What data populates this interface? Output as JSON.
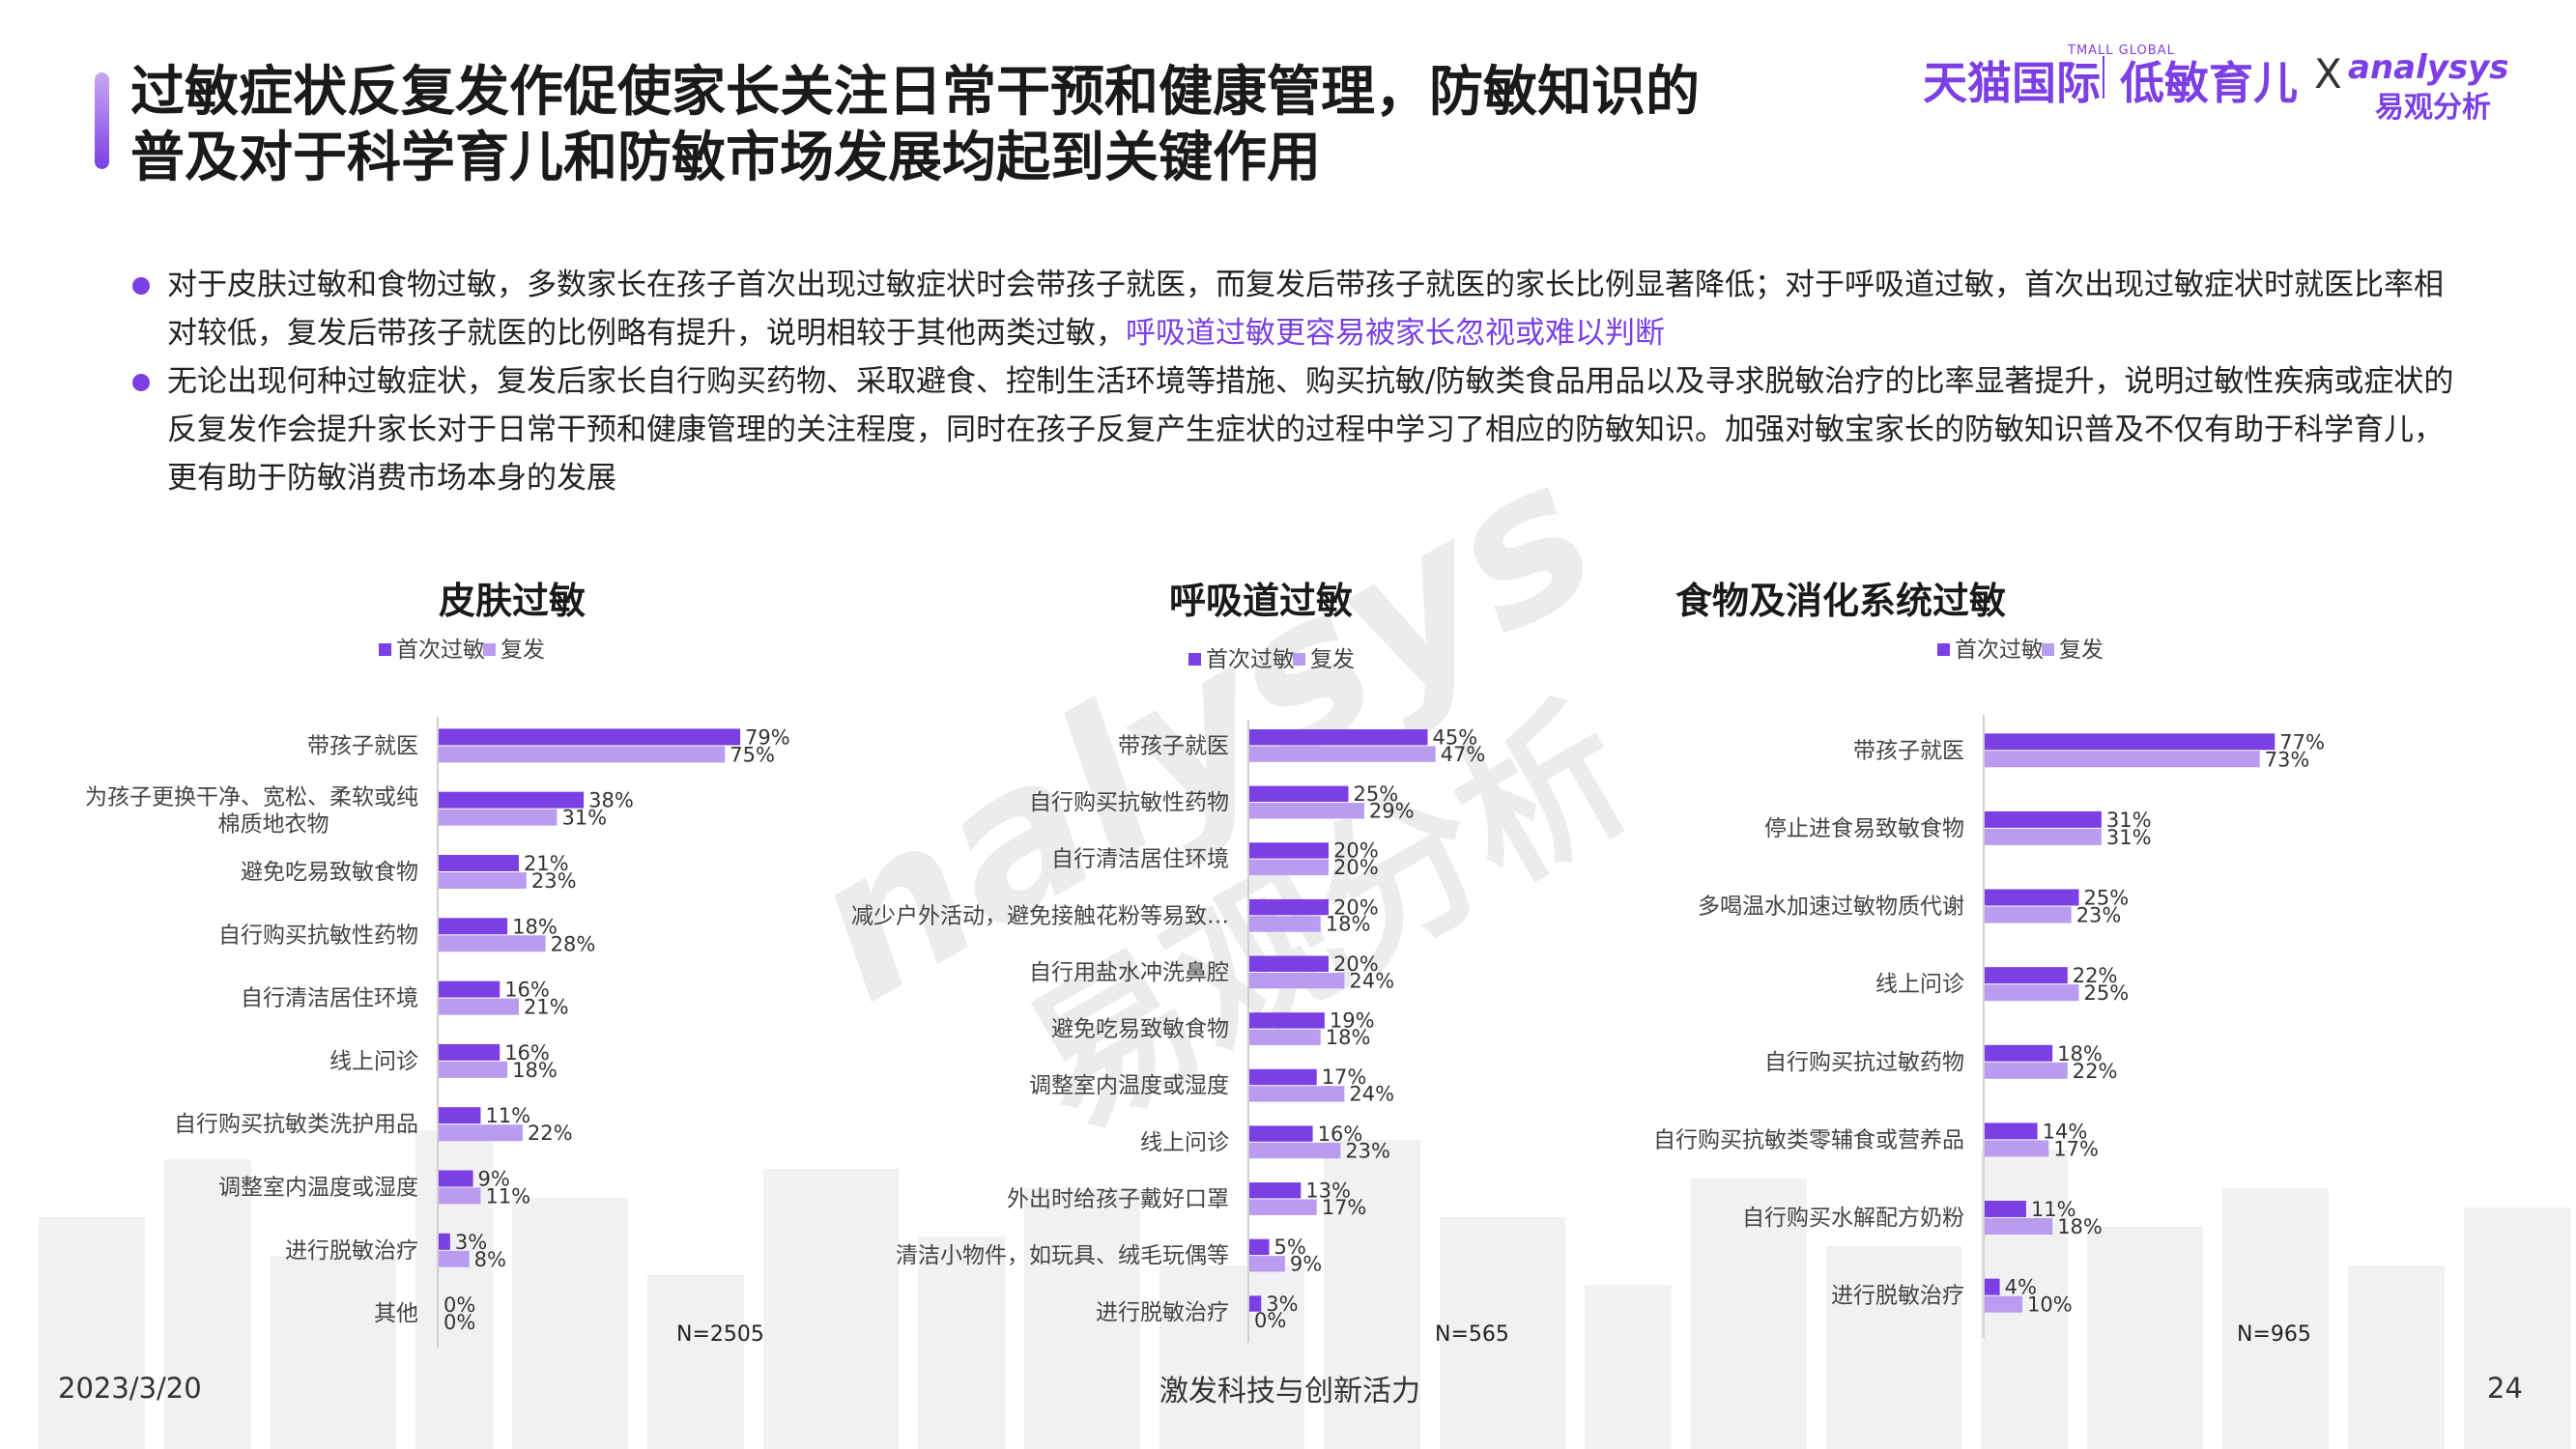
{
  "header": {
    "title_line1": "过敏症状反复发作促使家长关注日常干预和健康管理，防敏知识的",
    "title_line2": "普及对于科学育儿和防敏市场发展均起到关键作用"
  },
  "logo": {
    "tmall": "天猫国际",
    "tmall_sub": "TMALL GLOBAL",
    "product": "低敏育儿",
    "x": "X",
    "analysys": "analysys",
    "analysys_cn": "易观分析"
  },
  "bullets": {
    "b1_part1": "对于皮肤过敏和食物过敏，多数家长在孩子首次出现过敏症状时会带孩子就医，而复发后带孩子就医的家长比例显著降低；对于呼吸道过敏，首次出现过敏症状时就医比率相对较低，复发后带孩子就医的比例略有提升，说明相较于其他两类过敏，",
    "b1_highlight": "呼吸道过敏更容易被家长忽视或难以判断",
    "b2": "无论出现何种过敏症状，复发后家长自行购买药物、采取避食、控制生活环境等措施、购买抗敏/防敏类食品用品以及寻求脱敏治疗的比率显著提升，说明过敏性疾病或症状的反复发作会提升家长对于日常干预和健康管理的关注程度，同时在孩子反复产生症状的过程中学习了相应的防敏知识。加强对敏宝家长的防敏知识普及不仅有助于科学育儿，更有助于防敏消费市场本身的发展"
  },
  "colors": {
    "first": "#7b3fe4",
    "repeat": "#b99cf0",
    "accent": "#7b3fe4"
  },
  "chart_data": [
    {
      "type": "bar",
      "title": "皮肤过敏",
      "n_label": "N=2505",
      "categories": [
        "带孩子就医",
        "为孩子更换干净、宽松、柔软或纯棉质地衣物",
        "避免吃易致敏食物",
        "自行购买抗敏性药物",
        "自行清洁居住环境",
        "线上问诊",
        "自行购买抗敏类洗护用品",
        "调整室内温度或湿度",
        "进行脱敏治疗",
        "其他"
      ],
      "series": [
        {
          "name": "首次过敏",
          "values": [
            79,
            38,
            21,
            18,
            16,
            16,
            11,
            9,
            3,
            0
          ]
        },
        {
          "name": "复发",
          "values": [
            75,
            31,
            23,
            28,
            21,
            18,
            22,
            11,
            8,
            0
          ]
        }
      ],
      "unit": "%"
    },
    {
      "type": "bar",
      "title": "呼吸道过敏",
      "n_label": "N=565",
      "categories": [
        "带孩子就医",
        "自行购买抗敏性药物",
        "自行清洁居住环境",
        "减少户外活动，避免接触花粉等易致…",
        "自行用盐水冲洗鼻腔",
        "避免吃易致敏食物",
        "调整室内温度或湿度",
        "线上问诊",
        "外出时给孩子戴好口罩",
        "清洁小物件，如玩具、绒毛玩偶等",
        "进行脱敏治疗"
      ],
      "series": [
        {
          "name": "首次过敏",
          "values": [
            45,
            25,
            20,
            20,
            20,
            19,
            17,
            16,
            13,
            5,
            3
          ]
        },
        {
          "name": "复发",
          "values": [
            47,
            29,
            20,
            18,
            24,
            18,
            24,
            23,
            17,
            9,
            0
          ]
        }
      ],
      "unit": "%"
    },
    {
      "type": "bar",
      "title": "食物及消化系统过敏",
      "n_label": "N=965",
      "categories": [
        "带孩子就医",
        "停止进食易致敏食物",
        "多喝温水加速过敏物质代谢",
        "线上问诊",
        "自行购买抗过敏药物",
        "自行购买抗敏类零辅食或营养品",
        "自行购买水解配方奶粉",
        "进行脱敏治疗"
      ],
      "series": [
        {
          "name": "首次过敏",
          "values": [
            77,
            31,
            25,
            22,
            18,
            14,
            11,
            4
          ]
        },
        {
          "name": "复发",
          "values": [
            73,
            31,
            23,
            25,
            22,
            17,
            18,
            10
          ]
        }
      ],
      "unit": "%"
    }
  ],
  "footer": {
    "date": "2023/3/20",
    "slogan": "激发科技与创新活力",
    "page": "24"
  }
}
